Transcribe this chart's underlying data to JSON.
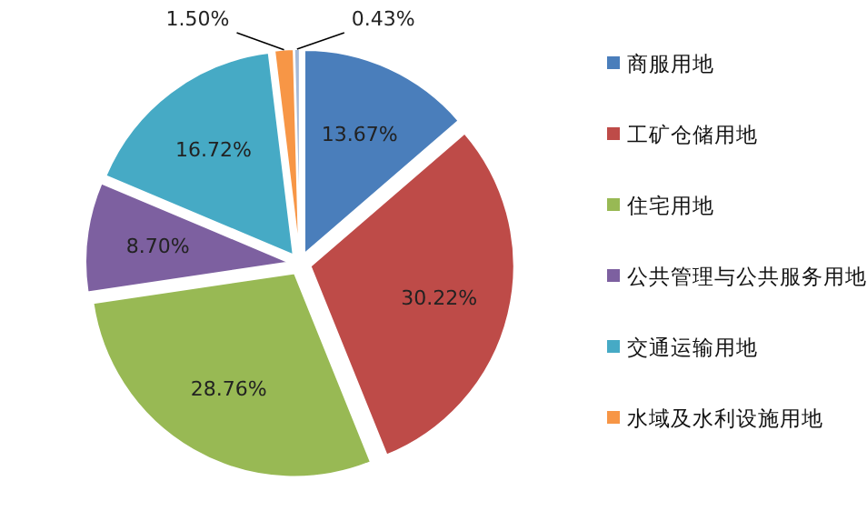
{
  "chart_data": {
    "type": "pie",
    "categories": [
      "商服用地",
      "工矿仓储用地",
      "住宅用地",
      "公共管理与公共服务用地",
      "交通运输用地",
      "水域及水利设施用地",
      null
    ],
    "values": [
      13.67,
      30.22,
      28.76,
      8.7,
      16.72,
      1.5,
      0.43
    ],
    "colors": [
      "#4a7ebb",
      "#be4b48",
      "#98b954",
      "#7d60a0",
      "#46aac5",
      "#f79646",
      "#a5b9d8"
    ],
    "value_labels": [
      "13.67%",
      "30.22%",
      "28.76%",
      "8.70%",
      "16.72%",
      "1.50%",
      "0.43%"
    ],
    "legend": "right"
  }
}
